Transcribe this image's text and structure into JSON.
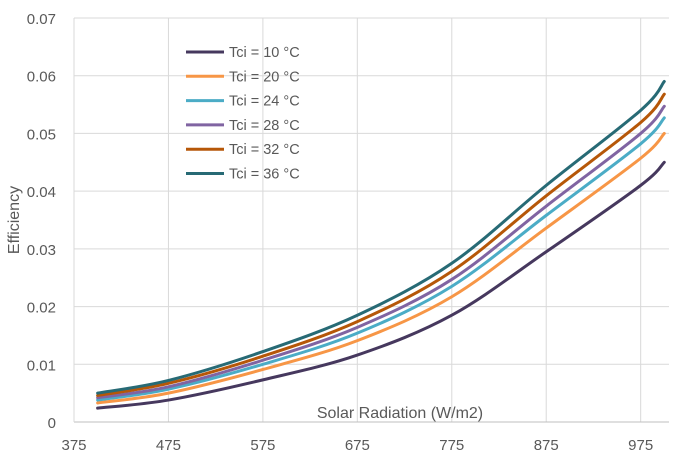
{
  "chart_data": {
    "type": "line",
    "title": "",
    "xlabel": "Solar Radiation (W/m2)",
    "ylabel": "Efficiency",
    "xlim": [
      375,
      1005
    ],
    "ylim": [
      0,
      0.07
    ],
    "x_ticks": [
      375,
      475,
      575,
      675,
      775,
      875,
      975
    ],
    "x_tick_labels": [
      "375",
      "475",
      "575",
      "675",
      "775",
      "875",
      "975"
    ],
    "y_ticks": [
      0,
      0.01,
      0.02,
      0.03,
      0.04,
      0.05,
      0.06,
      0.07
    ],
    "y_tick_labels": [
      "0",
      "0.01",
      "0.02",
      "0.03",
      "0.04",
      "0.05",
      "0.06",
      "0.07"
    ],
    "grid": true,
    "legend_position": "top-left",
    "x": [
      400,
      475,
      575,
      675,
      775,
      875,
      975,
      1000
    ],
    "series": [
      {
        "name": "Tci =  10 °C",
        "color": "#46385e",
        "values": [
          0.0024,
          0.0038,
          0.0073,
          0.0116,
          0.0185,
          0.0295,
          0.041,
          0.045
        ]
      },
      {
        "name": "Tci =  20 °C",
        "color": "#f79646",
        "values": [
          0.0033,
          0.005,
          0.0091,
          0.0141,
          0.0217,
          0.0336,
          0.0457,
          0.05
        ]
      },
      {
        "name": "Tci =  24 °C",
        "color": "#4bacc6",
        "values": [
          0.0038,
          0.0057,
          0.01,
          0.0154,
          0.0235,
          0.0358,
          0.0482,
          0.0527
        ]
      },
      {
        "name": "Tci = 28 °C",
        "color": "#8064a2",
        "values": [
          0.0042,
          0.0061,
          0.0107,
          0.0164,
          0.0247,
          0.0374,
          0.05,
          0.0547
        ]
      },
      {
        "name": "Tci =  32 °C",
        "color": "#b65708",
        "values": [
          0.0046,
          0.0067,
          0.0114,
          0.0174,
          0.0261,
          0.0392,
          0.0519,
          0.0568
        ]
      },
      {
        "name": "Tci = 36 °C",
        "color": "#276a75",
        "values": [
          0.005,
          0.0072,
          0.0122,
          0.0185,
          0.0275,
          0.041,
          0.054,
          0.059
        ]
      }
    ]
  }
}
